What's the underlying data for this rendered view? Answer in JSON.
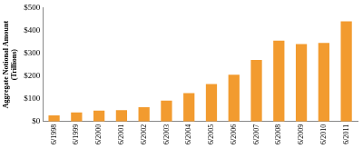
{
  "chart_data": {
    "type": "bar",
    "y_label": [
      "Aggregate Notional Amount",
      "(Trillions)"
    ],
    "categories": [
      "6/1998",
      "6/1999",
      "6/2000",
      "6/2001",
      "6/2002",
      "6/2003",
      "6/2004",
      "6/2005",
      "6/2006",
      "6/2007",
      "6/2008",
      "6/2009",
      "6/2010",
      "6/2011"
    ],
    "values": [
      27,
      40,
      48,
      50,
      63,
      92,
      125,
      165,
      205,
      270,
      355,
      340,
      345,
      440
    ],
    "color": "#f29b2f",
    "ylim": [
      0,
      500
    ],
    "yticks": [
      {
        "value": 0,
        "label": "$0"
      },
      {
        "value": 100,
        "label": "$100"
      },
      {
        "value": 200,
        "label": "$200"
      },
      {
        "value": 300,
        "label": "$300"
      },
      {
        "value": 400,
        "label": "$400"
      },
      {
        "value": 500,
        "label": "$500"
      }
    ],
    "grid": false
  }
}
